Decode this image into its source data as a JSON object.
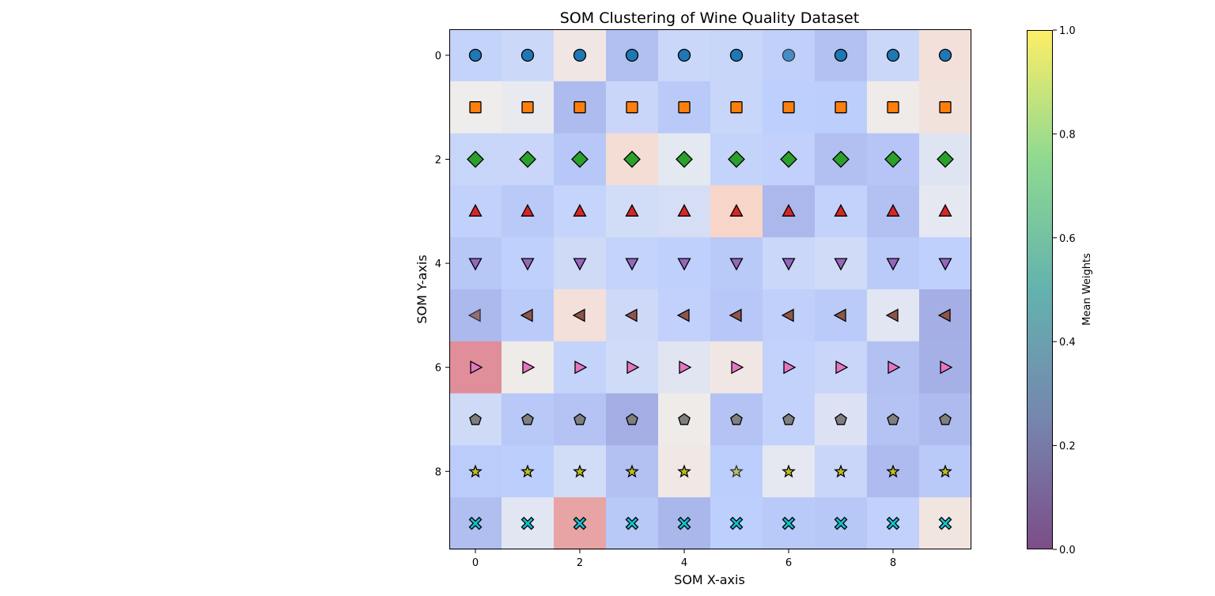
{
  "chart_data": {
    "type": "heatmap",
    "title": "SOM Clustering of Wine Quality Dataset",
    "xlabel": "SOM X-axis",
    "ylabel": "SOM Y-axis",
    "xlim": [
      -0.5,
      9.5
    ],
    "ylim": [
      9.5,
      -0.5
    ],
    "x_ticks": [
      0,
      2,
      4,
      6,
      8
    ],
    "y_ticks": [
      0,
      2,
      4,
      6,
      8
    ],
    "grid": false,
    "colorbar": {
      "label": "Mean Weights",
      "range": [
        0,
        1
      ],
      "ticks": [
        "0.0",
        "0.2",
        "0.4",
        "0.6",
        "0.8",
        "1.0"
      ],
      "colors": [
        "#440154",
        "#3b528b",
        "#21918c",
        "#5ec962",
        "#fde725"
      ],
      "alpha": 0.7
    },
    "background_cmap": {
      "type": "coolwarm",
      "range": [
        -1.6,
        1.3
      ],
      "alpha": 0.5
    },
    "cell_values": [
      [
        -0.78,
        -0.66,
        0.0,
        -1.15,
        -0.68,
        -0.74,
        -0.84,
        -1.12,
        -0.68,
        0.15
      ],
      [
        -0.12,
        -0.24,
        -1.22,
        -0.7,
        -0.97,
        -0.72,
        -0.88,
        -0.9,
        -0.08,
        0.1
      ],
      [
        -0.74,
        -0.7,
        -1.01,
        0.22,
        -0.3,
        -0.78,
        -0.82,
        -1.15,
        -1.05,
        -0.38
      ],
      [
        -0.82,
        -0.98,
        -0.76,
        -0.58,
        -0.52,
        0.4,
        -1.27,
        -0.8,
        -1.12,
        -0.28
      ],
      [
        -1.02,
        -0.85,
        -0.62,
        -0.78,
        -0.85,
        -0.98,
        -0.68,
        -0.6,
        -0.96,
        -0.85
      ],
      [
        -1.26,
        -0.95,
        0.15,
        -0.64,
        -0.82,
        -1.01,
        -0.84,
        -0.94,
        -0.34,
        -1.43
      ],
      [
        1.18,
        -0.08,
        -0.78,
        -0.6,
        -0.35,
        0.0,
        -0.8,
        -0.7,
        -1.12,
        -1.42
      ],
      [
        -0.62,
        -1.0,
        -1.08,
        -1.45,
        -0.08,
        -1.08,
        -0.8,
        -0.42,
        -1.08,
        -1.22
      ],
      [
        -0.92,
        -0.9,
        -0.58,
        -1.12,
        -0.02,
        -0.9,
        -0.28,
        -0.7,
        -1.22,
        -0.98
      ],
      [
        -1.18,
        -0.34,
        0.98,
        -1.0,
        -1.3,
        -0.88,
        -0.98,
        -1.02,
        -0.82,
        0.05
      ]
    ],
    "rows": [
      {
        "y": 0,
        "marker": "circle",
        "color": "#1f77b4"
      },
      {
        "y": 1,
        "marker": "square",
        "color": "#ff7f0e"
      },
      {
        "y": 2,
        "marker": "diamond",
        "color": "#2ca02c"
      },
      {
        "y": 3,
        "marker": "triangle-up",
        "color": "#d62728"
      },
      {
        "y": 4,
        "marker": "triangle-down",
        "color": "#9467bd"
      },
      {
        "y": 5,
        "marker": "triangle-left",
        "color": "#8c564b"
      },
      {
        "y": 6,
        "marker": "triangle-right",
        "color": "#e377c2"
      },
      {
        "y": 7,
        "marker": "pentagon",
        "color": "#7f7f7f"
      },
      {
        "y": 8,
        "marker": "star",
        "color": "#bcbd22"
      },
      {
        "y": 9,
        "marker": "x-filled",
        "color": "#17becf"
      }
    ],
    "faint_markers": [
      [
        6,
        0
      ],
      [
        0,
        5
      ],
      [
        5,
        8
      ]
    ]
  }
}
